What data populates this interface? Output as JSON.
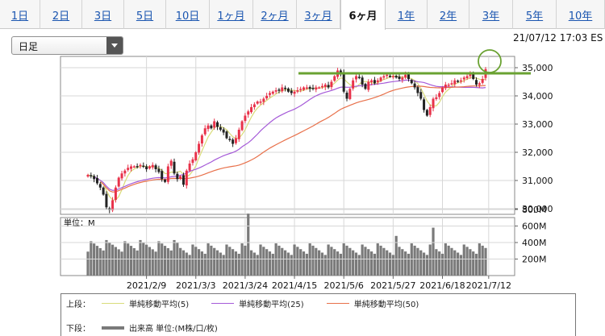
{
  "tabs": [
    "1日",
    "2日",
    "3日",
    "5日",
    "10日",
    "1ヶ月",
    "2ヶ月",
    "3ヶ月",
    "6ヶ月",
    "1年",
    "2年",
    "3年",
    "5年",
    "10年"
  ],
  "active_tab": "6ヶ月",
  "selector": {
    "value": "日足"
  },
  "timestamp": "21/07/12 17:03 ES",
  "colors": {
    "up_candle": "#e8324a",
    "down_candle": "#222222",
    "ma5": "#d9dc7a",
    "ma25": "#a55ad8",
    "ma50": "#e8704a",
    "volume": "#7a7a7a",
    "resistance_line": "#6aa232",
    "highlight_circle": "#6aa232"
  },
  "chart_data": [
    {
      "type": "candlestick",
      "ylim": [
        29800,
        35400
      ],
      "y_ticks": [
        "35,000",
        "34,000",
        "33,000",
        "32,000",
        "31,000",
        "30,000"
      ],
      "x_ticks": [
        "2021/2/9",
        "2021/3/3",
        "2021/3/24",
        "2021/4/15",
        "2021/5/6",
        "2021/5/27",
        "2021/6/18",
        "2021/7/12"
      ],
      "grid": true,
      "close": [
        31200,
        31150,
        31050,
        30900,
        30750,
        30500,
        30050,
        29950,
        30300,
        30750,
        31100,
        31250,
        31350,
        31450,
        31500,
        31500,
        31500,
        31550,
        31500,
        31400,
        31500,
        31550,
        31400,
        31300,
        31050,
        30950,
        31500,
        31700,
        31250,
        31050,
        31150,
        30850,
        31350,
        31600,
        31750,
        32000,
        32300,
        32600,
        32850,
        32950,
        32850,
        33100,
        32900,
        32800,
        32700,
        32500,
        32450,
        32300,
        32500,
        32800,
        33100,
        33300,
        33450,
        33600,
        33700,
        33800,
        33800,
        33900,
        34000,
        34100,
        34150,
        34200,
        34200,
        34300,
        34250,
        34150,
        34100,
        34150,
        34200,
        34250,
        34300,
        34300,
        34250,
        34250,
        34300,
        34300,
        34350,
        34400,
        34300,
        34500,
        34700,
        34900,
        34800,
        34150,
        33900,
        34250,
        34550,
        34700,
        34650,
        34400,
        34250,
        34500,
        34550,
        34450,
        34550,
        34650,
        34700,
        34750,
        34700,
        34700,
        34650,
        34600,
        34650,
        34750,
        34600,
        34450,
        34300,
        34100,
        33900,
        33500,
        33300,
        33600,
        33900,
        33950,
        34100,
        34300,
        34400,
        34400,
        34450,
        34550,
        34500,
        34550,
        34650,
        34700,
        34800,
        34600,
        34400,
        34450,
        34600,
        34950
      ],
      "series": [
        {
          "name": "単純移動平均(5)",
          "period": 5
        },
        {
          "name": "単純移動平均(25)",
          "period": 25
        },
        {
          "name": "単純移動平均(50)",
          "period": 50
        }
      ],
      "resistance_level": 34800
    },
    {
      "type": "bar",
      "unit_label": "単位：M",
      "ylim": [
        0,
        800
      ],
      "y_ticks": [
        "800M",
        "600M",
        "400M",
        "200M"
      ],
      "volume_spikes_M": {
        "52": 750,
        "100": 480,
        "112": 580
      },
      "volume_base_M": 320
    }
  ],
  "legend": {
    "upper_label": "上段：",
    "lower_label": "下段：",
    "ma5": "単純移動平均(5)",
    "ma25": "単純移動平均(25)",
    "ma50": "単純移動平均(50)",
    "volume": "出来高 単位:(M株/口/枚)"
  }
}
